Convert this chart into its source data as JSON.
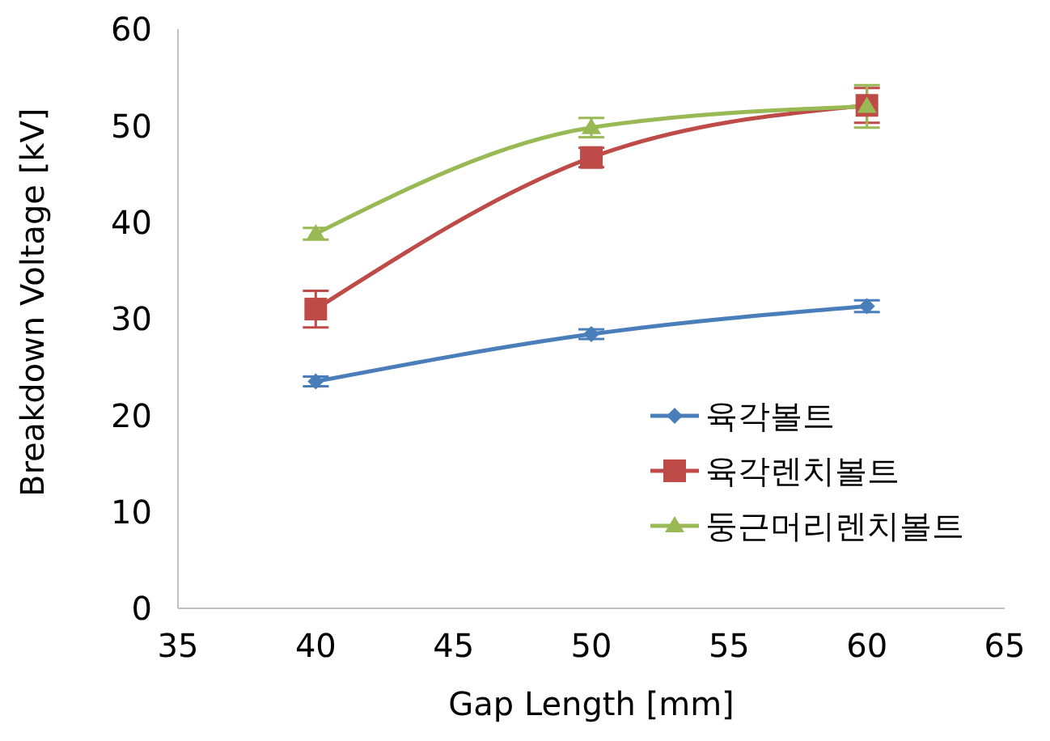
{
  "chart_data": {
    "type": "line",
    "xlabel": "Gap Length [mm]",
    "ylabel": "Breakdown Voltage [kV]",
    "x": [
      40,
      50,
      60
    ],
    "series": [
      {
        "name": "육각볼트",
        "color": "#4a7ebb",
        "marker": "diamond",
        "values": [
          23.5,
          28.4,
          31.3
        ],
        "errors": [
          0.5,
          0.5,
          0.6
        ]
      },
      {
        "name": "육각렌치볼트",
        "color": "#be4b48",
        "marker": "square",
        "values": [
          31,
          46.7,
          52.1
        ],
        "errors": [
          1.9,
          1,
          1.8
        ]
      },
      {
        "name": "둥근머리렌치볼트",
        "color": "#98b954",
        "marker": "triangle",
        "values": [
          38.8,
          49.8,
          52
        ],
        "errors": [
          0.6,
          1,
          2.2
        ]
      }
    ],
    "xlim": [
      35,
      65
    ],
    "xticks": [
      35,
      40,
      45,
      50,
      55,
      60,
      65
    ],
    "ylim": [
      0,
      60
    ],
    "yticks": [
      0,
      10,
      20,
      30,
      40,
      50,
      60
    ],
    "grid": false,
    "legend": "bottom right"
  }
}
